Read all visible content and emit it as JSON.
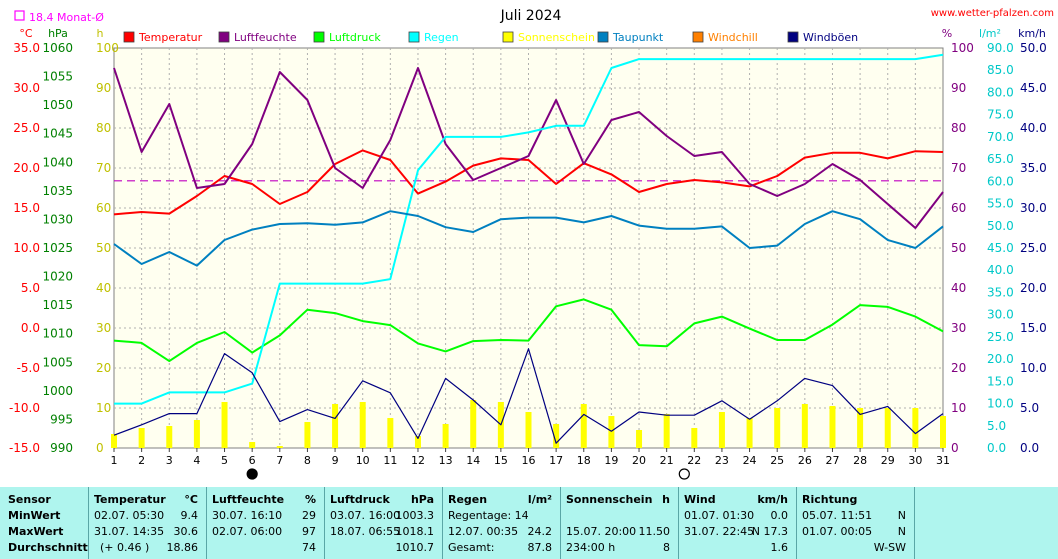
{
  "chart_data": {
    "type": "line",
    "title": "Juli 2024",
    "watermark": "www.wetter-pfalzen.com",
    "monthly_avg_label": "18.4 Monat-Ø",
    "monthly_avg_temp": 18.4,
    "x": [
      1,
      2,
      3,
      4,
      5,
      6,
      7,
      8,
      9,
      10,
      11,
      12,
      13,
      14,
      15,
      16,
      17,
      18,
      19,
      20,
      21,
      22,
      23,
      24,
      25,
      26,
      27,
      28,
      29,
      30,
      31
    ],
    "axes": {
      "temp": {
        "unit": "°C",
        "range": [
          -15,
          35
        ],
        "ticks": [
          "35.0",
          "30.0",
          "25.0",
          "20.0",
          "15.0",
          "10.0",
          "5.0",
          "0.0",
          "-5.0",
          "-10.0",
          "-15.0"
        ]
      },
      "pressure": {
        "unit": "hPa",
        "range": [
          990,
          1060
        ],
        "ticks": [
          "1060",
          "1055",
          "1050",
          "1045",
          "1040",
          "1035",
          "1030",
          "1025",
          "1020",
          "1015",
          "1010",
          "1005",
          "1000",
          "995",
          "990"
        ]
      },
      "sun": {
        "unit": "h",
        "range": [
          0,
          100
        ],
        "ticks": [
          "100",
          "90",
          "80",
          "70",
          "60",
          "50",
          "40",
          "30",
          "20",
          "10",
          "0"
        ]
      },
      "humidity": {
        "unit": "%",
        "range": [
          0,
          100
        ],
        "ticks": [
          "100",
          "90",
          "80",
          "70",
          "60",
          "50",
          "40",
          "30",
          "20",
          "10",
          "0"
        ]
      },
      "rain": {
        "unit": "l/m²",
        "range": [
          0,
          90
        ],
        "ticks": [
          "90.0",
          "85.0",
          "80.0",
          "75.0",
          "70.0",
          "65.0",
          "60.0",
          "55.0",
          "50.0",
          "45.0",
          "40.0",
          "35.0",
          "30.0",
          "25.0",
          "20.0",
          "15.0",
          "10.0",
          "5.0",
          "0.0"
        ]
      },
      "wind": {
        "unit": "km/h",
        "range": [
          0,
          50
        ],
        "ticks": [
          "50.0",
          "45.0",
          "40.0",
          "35.0",
          "30.0",
          "25.0",
          "20.0",
          "15.0",
          "10.0",
          "5.0",
          "0.0"
        ]
      }
    },
    "legend": [
      {
        "name": "Temperatur",
        "color": "#ff0000"
      },
      {
        "name": "Luftfeuchte",
        "color": "#800080"
      },
      {
        "name": "Luftdruck",
        "color": "#00ff00"
      },
      {
        "name": "Regen",
        "color": "#00ffff"
      },
      {
        "name": "Sonnenschein",
        "color": "#ffff00"
      },
      {
        "name": "Taupunkt",
        "color": "#0080c0"
      },
      {
        "name": "Windchill",
        "color": "#ff8000"
      },
      {
        "name": "Windböen",
        "color": "#000080"
      }
    ],
    "series": [
      {
        "name": "Temperatur",
        "axis": "temp",
        "color": "#ff0000",
        "values": [
          14.2,
          14.5,
          14.3,
          16.5,
          19.0,
          18.0,
          15.5,
          17.0,
          20.5,
          22.2,
          21.0,
          16.8,
          18.3,
          20.3,
          21.2,
          21.0,
          18.0,
          20.6,
          19.2,
          17.0,
          18.0,
          18.5,
          18.2,
          17.7,
          19.0,
          21.3,
          21.9,
          21.9,
          21.2,
          22.1,
          22.0
        ]
      },
      {
        "name": "Luftfeuchte",
        "axis": "humidity",
        "color": "#800080",
        "values": [
          95,
          74,
          86,
          65,
          66,
          76,
          94,
          87,
          70,
          65,
          77,
          95,
          76,
          67,
          70,
          73,
          87,
          71,
          82,
          84,
          78,
          73,
          74,
          66,
          63,
          66,
          71,
          67,
          61,
          55,
          64
        ]
      },
      {
        "name": "Luftdruck",
        "axis": "pressure",
        "color": "#00ff00",
        "values": [
          1008.8,
          1008.4,
          1005.2,
          1008.4,
          1010.3,
          1006.7,
          1009.7,
          1014.2,
          1013.6,
          1012.2,
          1011.5,
          1008.3,
          1006.9,
          1008.7,
          1008.9,
          1008.8,
          1014.8,
          1016.0,
          1014.2,
          1008.0,
          1007.8,
          1011.8,
          1013.0,
          1010.9,
          1008.9,
          1008.9,
          1011.6,
          1015.0,
          1014.7,
          1013.0,
          1010.4
        ]
      },
      {
        "name": "Regen",
        "axis": "rain",
        "color": "#00ffff",
        "values": [
          10.0,
          10.0,
          12.5,
          12.5,
          12.5,
          14.5,
          37.0,
          37.0,
          37.0,
          37.0,
          38.0,
          62.5,
          70.0,
          70.0,
          70.0,
          71.0,
          72.5,
          72.5,
          85.5,
          87.5,
          87.5,
          87.5,
          87.5,
          87.5,
          87.5,
          87.5,
          87.5,
          87.5,
          87.5,
          87.5,
          88.5
        ]
      },
      {
        "name": "Taupunkt",
        "axis": "temp",
        "color": "#0080c0",
        "values": [
          10.5,
          8.0,
          9.5,
          7.8,
          11.0,
          12.3,
          13.0,
          13.1,
          12.9,
          13.2,
          14.6,
          14.0,
          12.6,
          12.0,
          13.6,
          13.8,
          13.8,
          13.2,
          14.0,
          12.8,
          12.4,
          12.4,
          12.7,
          10.0,
          10.3,
          13.0,
          14.6,
          13.6,
          11.0,
          10.0,
          12.7
        ]
      },
      {
        "name": "Windböen",
        "axis": "wind",
        "color": "#000080",
        "values": [
          1.6,
          2.9,
          4.3,
          4.3,
          11.8,
          9.4,
          3.3,
          4.8,
          3.7,
          8.4,
          6.9,
          1.2,
          8.7,
          6.0,
          2.9,
          12.4,
          0.6,
          4.2,
          2.1,
          4.5,
          4.1,
          4.1,
          5.9,
          3.6,
          5.9,
          8.7,
          7.8,
          4.2,
          5.2,
          1.8,
          4.3
        ]
      },
      {
        "name": "Sonnenschein",
        "axis": "sun",
        "color": "#ffff00",
        "type": "bar",
        "values": [
          3.5,
          5.0,
          5.5,
          7.0,
          11.5,
          1.5,
          0.5,
          6.5,
          11.0,
          11.5,
          7.5,
          3.0,
          6.0,
          12.0,
          11.5,
          9.0,
          6.0,
          11.0,
          8.0,
          4.5,
          8.5,
          5.0,
          9.0,
          7.5,
          10.0,
          11.0,
          10.5,
          10.0,
          10.0,
          10.0,
          8.0
        ]
      }
    ],
    "markers": [
      {
        "type": "new-moon",
        "day": 6
      },
      {
        "type": "full-moon",
        "day": 22
      }
    ],
    "grid": true
  },
  "summary_table": {
    "row_labels": [
      "Sensor",
      "MinWert",
      "MaxWert",
      "Durchschnitt"
    ],
    "columns": [
      {
        "title": "Temperatur",
        "unit": "°C",
        "min_time": "02.07.  05:30",
        "min_val": "9.4",
        "max_time": "31.07.  14:35",
        "max_val": "30.6",
        "avg_note": "(+ 0.46 )",
        "avg_val": "18.86"
      },
      {
        "title": "Luftfeuchte",
        "unit": "%",
        "min_time": "30.07.  16:10",
        "min_val": "29",
        "max_time": "02.07.  06:00",
        "max_val": "97",
        "avg_note": "",
        "avg_val": "74"
      },
      {
        "title": "Luftdruck",
        "unit": "hPa",
        "min_time": "03.07.  16:00",
        "min_val": "1003.3",
        "max_time": "18.07.  06:55",
        "max_val": "1018.1",
        "avg_note": "",
        "avg_val": "1010.7"
      },
      {
        "title": "Regen",
        "unit": "l/m²",
        "min_time": "Regentage: 14",
        "min_val": "",
        "max_time": "12.07.  00:35",
        "max_val": "24.2",
        "avg_note": "Gesamt:",
        "avg_val": "87.8"
      },
      {
        "title": "Sonnenschein",
        "unit": "h",
        "min_time": "",
        "min_val": "",
        "max_time": "15.07.  20:00",
        "max_val": "11.50",
        "avg_note": "234:00 h",
        "avg_val": "8"
      },
      {
        "title": "Wind",
        "unit": "km/h",
        "min_time": "01.07.  01:30",
        "min_val": "0.0",
        "max_time": "31.07.  22:45",
        "max_val": "N 17.3",
        "avg_note": "",
        "avg_val": "1.6"
      },
      {
        "title": "Richtung",
        "unit": "",
        "min_time": "05.07.  11:51",
        "min_val": "N",
        "max_time": "01.07.  00:05",
        "max_val": "N",
        "avg_note": "",
        "avg_val": "W-SW"
      }
    ]
  }
}
